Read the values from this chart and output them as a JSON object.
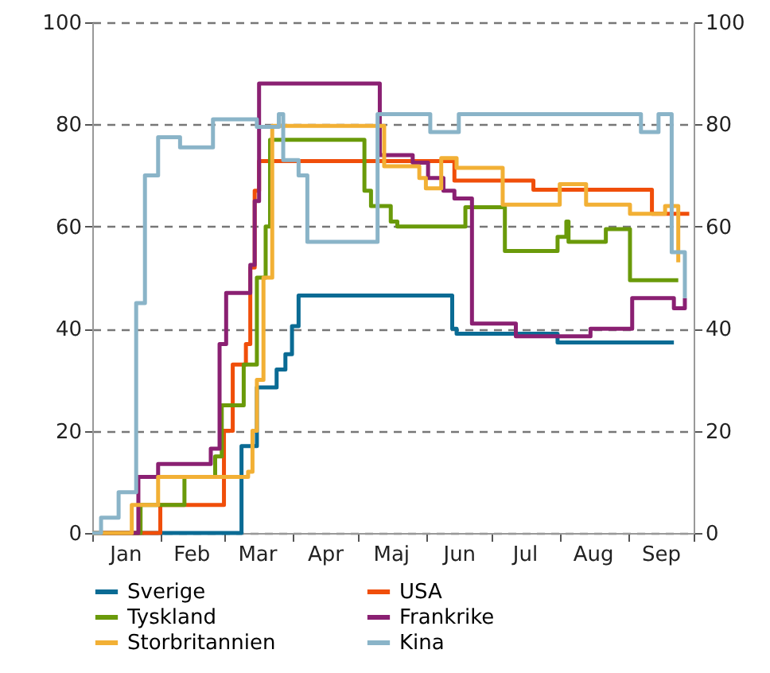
{
  "chart_data": {
    "type": "step",
    "xlim": [
      "--01-01",
      "--10-01"
    ],
    "xticks": [
      {
        "value": "--01-01",
        "label": null
      },
      {
        "value": "--01-16",
        "label": "Jan"
      },
      {
        "value": "--02-01",
        "label": null
      },
      {
        "value": "--02-15",
        "label": "Feb"
      },
      {
        "value": "--03-01",
        "label": null
      },
      {
        "value": "--03-16",
        "label": "Mar"
      },
      {
        "value": "--04-01",
        "label": null
      },
      {
        "value": "--04-16",
        "label": "Apr"
      },
      {
        "value": "--05-01",
        "label": null
      },
      {
        "value": "--05-16",
        "label": "Maj"
      },
      {
        "value": "--06-01",
        "label": null
      },
      {
        "value": "--06-16",
        "label": "Jun"
      },
      {
        "value": "--07-01",
        "label": null
      },
      {
        "value": "--07-16",
        "label": "Jul"
      },
      {
        "value": "--08-01",
        "label": null
      },
      {
        "value": "--08-16",
        "label": "Aug"
      },
      {
        "value": "--09-01",
        "label": null
      },
      {
        "value": "--09-16",
        "label": "Sep"
      },
      {
        "value": "--10-01",
        "label": null
      }
    ],
    "ylim": [
      0,
      100
    ],
    "yticks": [
      0,
      20,
      40,
      60,
      80,
      100
    ],
    "y2lim": [
      0,
      100
    ],
    "y2ticks": [
      0,
      20,
      40,
      60,
      80,
      100
    ],
    "grid": "y",
    "legend": "bottom",
    "line_style": "solid",
    "series": [
      {
        "name": "Sverige",
        "color": "#0a6b94",
        "x": [
          "--01-01",
          "--03-09",
          "--03-16",
          "--03-25",
          "--03-29",
          "--04-01",
          "--04-04",
          "--06-13",
          "--06-15",
          "--07-31",
          "--09-22"
        ],
        "values": [
          0,
          17,
          28.5,
          32,
          35,
          40.5,
          46.5,
          40,
          39,
          37.3,
          37.3
        ]
      },
      {
        "name": "USA",
        "color": "#f04e0a",
        "x": [
          "--01-01",
          "--02-01",
          "--03-01",
          "--03-05",
          "--03-11",
          "--03-13",
          "--03-15",
          "--03-17",
          "--06-14",
          "--07-20",
          "--09-12",
          "--09-29"
        ],
        "values": [
          0,
          5.5,
          20,
          33,
          37,
          52,
          67,
          72.8,
          69,
          67.2,
          62.5,
          62.5
        ]
      },
      {
        "name": "Tyskland",
        "color": "#6a9a0a",
        "x": [
          "--01-01",
          "--01-23",
          "--02-12",
          "--02-26",
          "--02-29",
          "--03-10",
          "--03-16",
          "--03-20",
          "--03-22",
          "--05-04",
          "--05-07",
          "--05-16",
          "--05-19",
          "--06-19",
          "--07-07",
          "--07-31",
          "--08-04",
          "--08-05",
          "--08-22",
          "--09-02",
          "--09-24"
        ],
        "values": [
          0,
          5.5,
          11,
          15,
          25,
          33,
          50,
          60,
          77,
          67,
          64,
          61,
          60,
          63.8,
          55.2,
          58,
          61,
          57,
          59.5,
          49.5,
          49.5
        ]
      },
      {
        "name": "Frankrike",
        "color": "#8a2072",
        "x": [
          "--01-01",
          "--01-22",
          "--01-31",
          "--02-24",
          "--02-28",
          "--03-02",
          "--03-13",
          "--03-15",
          "--03-17",
          "--05-11",
          "--05-26",
          "--06-02",
          "--06-09",
          "--06-14",
          "--06-22",
          "--07-12",
          "--08-15",
          "--09-03",
          "--09-22",
          "--09-27"
        ],
        "values": [
          0,
          11,
          13.5,
          16.5,
          37,
          47,
          52.5,
          65,
          88,
          74,
          72.5,
          69.5,
          67,
          65.5,
          41,
          38.5,
          40,
          46,
          44,
          46
        ]
      },
      {
        "name": "Storbritannien",
        "color": "#f2b035",
        "x": [
          "--01-01",
          "--01-19",
          "--01-31",
          "--03-12",
          "--03-14",
          "--03-16",
          "--03-19",
          "--03-23",
          "--05-13",
          "--05-29",
          "--06-01",
          "--06-08",
          "--06-15",
          "--07-06",
          "--08-01",
          "--08-13",
          "--09-02",
          "--09-18",
          "--09-24"
        ],
        "values": [
          0,
          5.5,
          11,
          12,
          20,
          30,
          50,
          79.7,
          71.8,
          69.5,
          67.5,
          73.4,
          71.5,
          64.3,
          68.3,
          64.3,
          62.5,
          64,
          53
        ]
      },
      {
        "name": "Kina",
        "color": "#8ab4c8",
        "x": [
          "--01-01",
          "--01-05",
          "--01-13",
          "--01-21",
          "--01-25",
          "--01-31",
          "--02-10",
          "--02-25",
          "--03-16",
          "--03-26",
          "--03-28",
          "--04-04",
          "--04-08",
          "--05-10",
          "--06-03",
          "--06-16",
          "--09-07",
          "--09-15",
          "--09-21",
          "--09-27"
        ],
        "values": [
          0,
          3,
          8,
          45,
          70,
          77.5,
          75.5,
          81,
          79.5,
          82,
          73,
          70,
          57,
          82,
          78.5,
          82,
          78.5,
          82,
          55,
          46
        ]
      }
    ]
  }
}
